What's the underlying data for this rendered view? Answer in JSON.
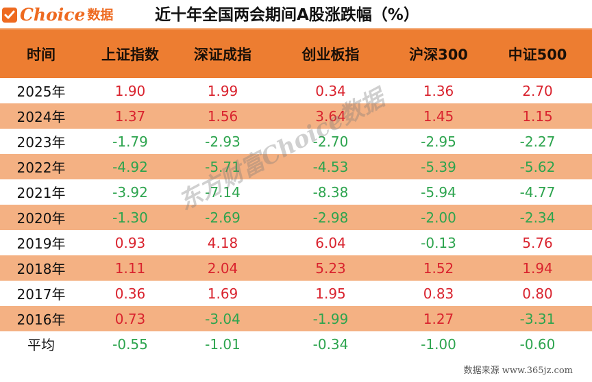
{
  "header": {
    "logo_text": "Choice",
    "logo_cn": "数据",
    "title": "近十年全国两会期间A股涨跌幅（%）"
  },
  "table": {
    "columns": [
      "时间",
      "上证指数",
      "深证成指",
      "创业板指",
      "沪深300",
      "中证500"
    ],
    "rows": [
      {
        "label": "2025年",
        "values": [
          "1.90",
          "1.99",
          "0.34",
          "1.36",
          "2.70"
        ]
      },
      {
        "label": "2024年",
        "values": [
          "1.37",
          "1.56",
          "3.64",
          "1.45",
          "1.15"
        ]
      },
      {
        "label": "2023年",
        "values": [
          "-1.79",
          "-2.93",
          "-2.70",
          "-2.95",
          "-2.27"
        ]
      },
      {
        "label": "2022年",
        "values": [
          "-4.92",
          "-5.71",
          "-4.53",
          "-5.39",
          "-5.62"
        ]
      },
      {
        "label": "2021年",
        "values": [
          "-3.92",
          "-7.14",
          "-8.38",
          "-5.94",
          "-4.77"
        ]
      },
      {
        "label": "2020年",
        "values": [
          "-1.30",
          "-2.69",
          "-2.98",
          "-2.00",
          "-2.34"
        ]
      },
      {
        "label": "2019年",
        "values": [
          "0.93",
          "4.18",
          "6.04",
          "-0.13",
          "5.76"
        ]
      },
      {
        "label": "2018年",
        "values": [
          "1.11",
          "2.04",
          "5.23",
          "1.52",
          "1.94"
        ]
      },
      {
        "label": "2017年",
        "values": [
          "0.36",
          "1.69",
          "1.95",
          "0.83",
          "0.80"
        ]
      },
      {
        "label": "2016年",
        "values": [
          "0.73",
          "-3.04",
          "-1.99",
          "1.27",
          "-3.31"
        ]
      },
      {
        "label": "平均",
        "values": [
          "-0.55",
          "-1.01",
          "-0.34",
          "-1.00",
          "-0.60"
        ]
      }
    ]
  },
  "watermark": "东方财富Choice数据",
  "footer": "数据来源 www.365jz.com",
  "colors": {
    "header_bg": "#ED7D31",
    "row_shade": "#F4B183",
    "positive": "#D9232E",
    "negative": "#2DA44E",
    "brand": "#EE6A20"
  }
}
